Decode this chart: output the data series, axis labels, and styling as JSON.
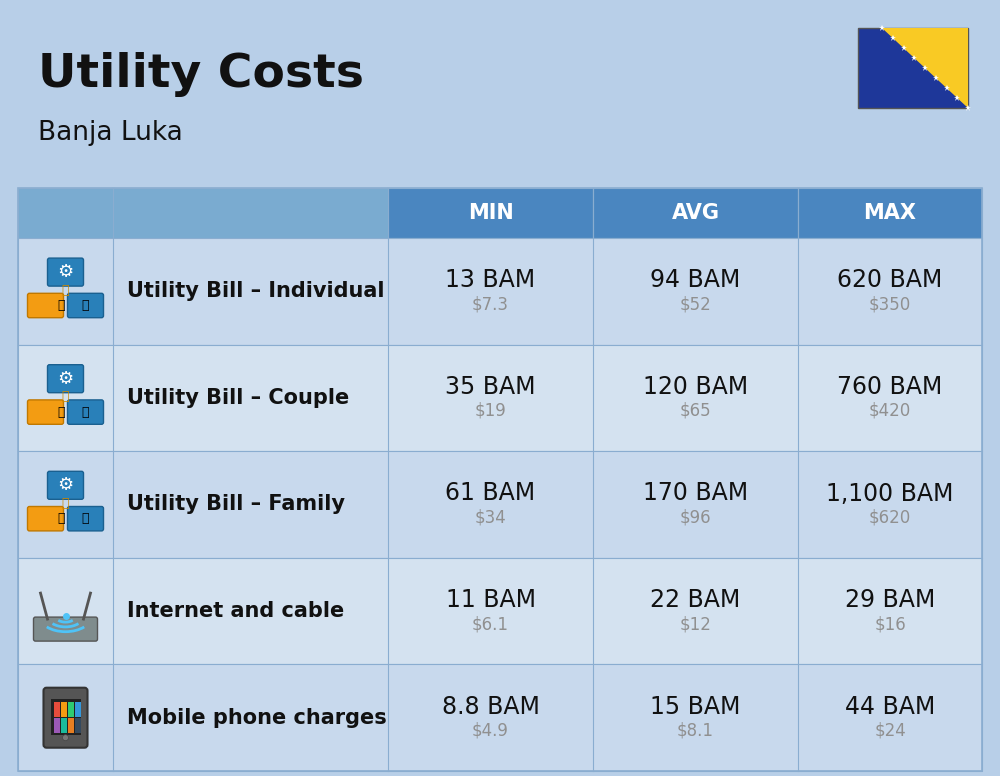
{
  "title": "Utility Costs",
  "subtitle": "Banja Luka",
  "background_color": "#b8cfe8",
  "header_bg_color": "#4a86c0",
  "header_text_color": "#ffffff",
  "row_bg_color_odd": "#c8d9ed",
  "row_bg_color_even": "#d4e2f0",
  "divider_color": "#8aadd0",
  "col_headers": [
    "MIN",
    "AVG",
    "MAX"
  ],
  "rows": [
    {
      "label": "Utility Bill – Individual",
      "icon": "utility",
      "min_bam": "13 BAM",
      "min_usd": "$7.3",
      "avg_bam": "94 BAM",
      "avg_usd": "$52",
      "max_bam": "620 BAM",
      "max_usd": "$350"
    },
    {
      "label": "Utility Bill – Couple",
      "icon": "utility",
      "min_bam": "35 BAM",
      "min_usd": "$19",
      "avg_bam": "120 BAM",
      "avg_usd": "$65",
      "max_bam": "760 BAM",
      "max_usd": "$420"
    },
    {
      "label": "Utility Bill – Family",
      "icon": "utility",
      "min_bam": "61 BAM",
      "min_usd": "$34",
      "avg_bam": "170 BAM",
      "avg_usd": "$96",
      "max_bam": "1,100 BAM",
      "max_usd": "$620"
    },
    {
      "label": "Internet and cable",
      "icon": "internet",
      "min_bam": "11 BAM",
      "min_usd": "$6.1",
      "avg_bam": "22 BAM",
      "avg_usd": "$12",
      "max_bam": "29 BAM",
      "max_usd": "$16"
    },
    {
      "label": "Mobile phone charges",
      "icon": "mobile",
      "min_bam": "8.8 BAM",
      "min_usd": "$4.9",
      "avg_bam": "15 BAM",
      "avg_usd": "$8.1",
      "max_bam": "44 BAM",
      "max_usd": "$24"
    }
  ],
  "title_fontsize": 34,
  "subtitle_fontsize": 19,
  "header_fontsize": 15,
  "label_fontsize": 15,
  "value_fontsize": 17,
  "usd_fontsize": 12,
  "usd_color": "#909090",
  "text_color": "#111111"
}
